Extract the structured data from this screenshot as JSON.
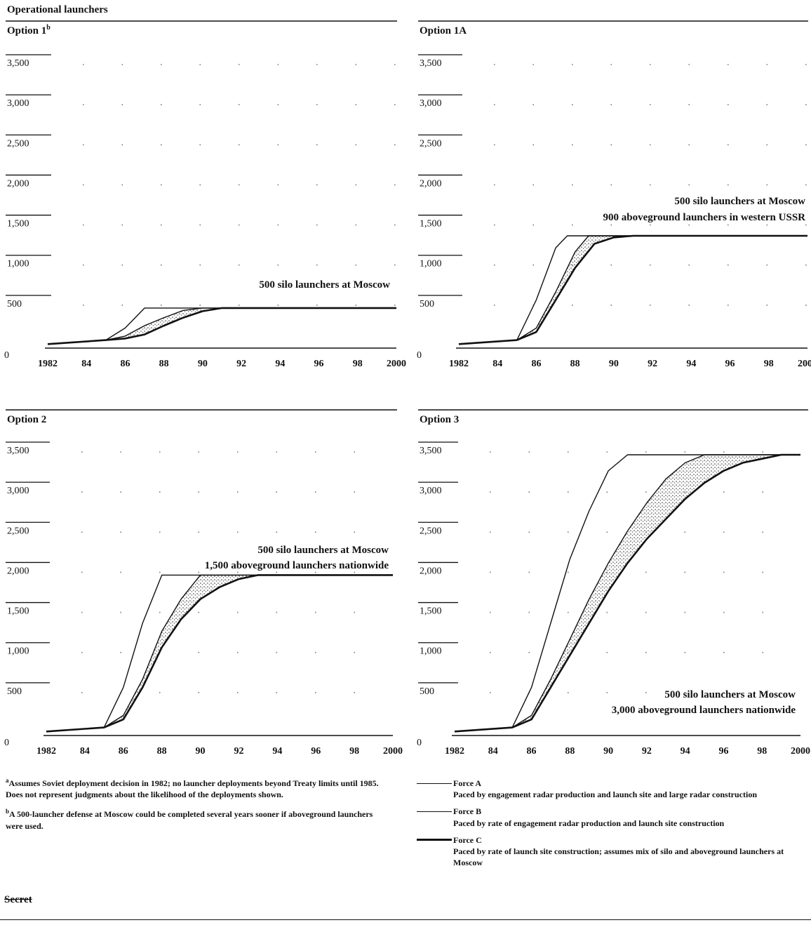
{
  "page_heading": "Operational launchers",
  "classification": "Secret",
  "footnotes": [
    {
      "mark": "a",
      "text": "Assumes Soviet deployment decision in 1982; no launcher deployments beyond Treaty limits until 1985. Does not represent judgments about the likelihood of the deployments shown."
    },
    {
      "mark": "b",
      "text": "A 500-launcher defense at Moscow could be completed several years sooner if aboveground launchers were used."
    }
  ],
  "legend": [
    {
      "label": "Force A",
      "description": "Paced by engagement radar production and launch site and large radar construction"
    },
    {
      "label": "Force B",
      "description": "Paced by rate of engagement radar production and launch site construction"
    },
    {
      "label": "Force C",
      "description": "Paced by rate of launch site construction; assumes mix of silo and aboveground launchers at Moscow"
    }
  ],
  "chart_data": [
    {
      "type": "area",
      "title": "Option 1",
      "title_mark": "b",
      "x_tick_labels": [
        "1982",
        "84",
        "86",
        "88",
        "90",
        "92",
        "94",
        "96",
        "98",
        "2000"
      ],
      "y_tick_labels": [
        "0",
        "500",
        "1,000",
        "1,500",
        "2,000",
        "2,500",
        "3,000",
        "3,500"
      ],
      "xlim": [
        1982,
        2000
      ],
      "ylim": [
        0,
        3500
      ],
      "grid": "dotted",
      "annotation": [
        "500 silo launchers at Moscow"
      ],
      "series": [
        {
          "name": "Force A",
          "points": [
            [
              1982,
              50
            ],
            [
              1985,
              100
            ],
            [
              1986,
              250
            ],
            [
              1987,
              500
            ],
            [
              1988,
              500
            ],
            [
              2000,
              500
            ]
          ]
        },
        {
          "name": "Force B",
          "points": [
            [
              1982,
              50
            ],
            [
              1985,
              100
            ],
            [
              1986,
              150
            ],
            [
              1987,
              280
            ],
            [
              1988,
              380
            ],
            [
              1989,
              470
            ],
            [
              1990,
              500
            ],
            [
              2000,
              500
            ]
          ]
        },
        {
          "name": "Force C",
          "points": [
            [
              1982,
              50
            ],
            [
              1985,
              100
            ],
            [
              1986,
              120
            ],
            [
              1987,
              170
            ],
            [
              1988,
              280
            ],
            [
              1989,
              380
            ],
            [
              1990,
              460
            ],
            [
              1991,
              500
            ],
            [
              2000,
              500
            ]
          ]
        }
      ]
    },
    {
      "type": "area",
      "title": "Option 1A",
      "x_tick_labels": [
        "1982",
        "84",
        "86",
        "88",
        "90",
        "92",
        "94",
        "96",
        "98",
        "2000"
      ],
      "y_tick_labels": [
        "0",
        "500",
        "1,000",
        "1,500",
        "2,000",
        "2,500",
        "3,000",
        "3,500"
      ],
      "xlim": [
        1982,
        2000
      ],
      "ylim": [
        0,
        3500
      ],
      "grid": "dotted",
      "annotation": [
        "500 silo launchers at Moscow",
        "900 aboveground launchers in western USSR"
      ],
      "series": [
        {
          "name": "Force A",
          "points": [
            [
              1982,
              50
            ],
            [
              1985,
              100
            ],
            [
              1986,
              600
            ],
            [
              1987,
              1250
            ],
            [
              1987.6,
              1400
            ],
            [
              2000,
              1400
            ]
          ]
        },
        {
          "name": "Force B",
          "points": [
            [
              1982,
              50
            ],
            [
              1985,
              100
            ],
            [
              1986,
              250
            ],
            [
              1987,
              700
            ],
            [
              1988,
              1200
            ],
            [
              1988.7,
              1400
            ],
            [
              2000,
              1400
            ]
          ]
        },
        {
          "name": "Force C",
          "points": [
            [
              1982,
              50
            ],
            [
              1985,
              100
            ],
            [
              1986,
              200
            ],
            [
              1987,
              600
            ],
            [
              1988,
              1000
            ],
            [
              1989,
              1300
            ],
            [
              1990,
              1380
            ],
            [
              1991,
              1400
            ],
            [
              2000,
              1400
            ]
          ]
        }
      ]
    },
    {
      "type": "area",
      "title": "Option 2",
      "x_tick_labels": [
        "1982",
        "84",
        "86",
        "88",
        "90",
        "92",
        "94",
        "96",
        "98",
        "2000"
      ],
      "y_tick_labels": [
        "0",
        "500",
        "1,000",
        "1,500",
        "2,000",
        "2,500",
        "3,000",
        "3,500"
      ],
      "xlim": [
        1982,
        2000
      ],
      "ylim": [
        0,
        3500
      ],
      "grid": "dotted",
      "annotation": [
        "500 silo launchers at Moscow",
        "1,500 aboveground launchers nationwide"
      ],
      "series": [
        {
          "name": "Force A",
          "points": [
            [
              1982,
              50
            ],
            [
              1985,
              100
            ],
            [
              1986,
              600
            ],
            [
              1987,
              1400
            ],
            [
              1988,
              2000
            ],
            [
              2000,
              2000
            ]
          ]
        },
        {
          "name": "Force B",
          "points": [
            [
              1982,
              50
            ],
            [
              1985,
              100
            ],
            [
              1986,
              250
            ],
            [
              1987,
              700
            ],
            [
              1988,
              1300
            ],
            [
              1989,
              1700
            ],
            [
              1990,
              2000
            ],
            [
              2000,
              2000
            ]
          ]
        },
        {
          "name": "Force C",
          "points": [
            [
              1982,
              50
            ],
            [
              1985,
              100
            ],
            [
              1986,
              200
            ],
            [
              1987,
              600
            ],
            [
              1988,
              1100
            ],
            [
              1989,
              1450
            ],
            [
              1990,
              1700
            ],
            [
              1991,
              1850
            ],
            [
              1992,
              1950
            ],
            [
              1993,
              2000
            ],
            [
              2000,
              2000
            ]
          ]
        }
      ]
    },
    {
      "type": "area",
      "title": "Option 3",
      "x_tick_labels": [
        "1982",
        "84",
        "86",
        "88",
        "90",
        "92",
        "94",
        "96",
        "98",
        "2000"
      ],
      "y_tick_labels": [
        "0",
        "500",
        "1,000",
        "1,500",
        "2,000",
        "2,500",
        "3,000",
        "3,500"
      ],
      "xlim": [
        1982,
        2000
      ],
      "ylim": [
        0,
        3500
      ],
      "grid": "dotted",
      "annotation": [
        "500 silo launchers at Moscow",
        "3,000 aboveground launchers nationwide"
      ],
      "series": [
        {
          "name": "Force A",
          "points": [
            [
              1982,
              50
            ],
            [
              1985,
              100
            ],
            [
              1986,
              600
            ],
            [
              1987,
              1400
            ],
            [
              1988,
              2200
            ],
            [
              1989,
              2800
            ],
            [
              1990,
              3300
            ],
            [
              1991,
              3500
            ],
            [
              2000,
              3500
            ]
          ]
        },
        {
          "name": "Force B",
          "points": [
            [
              1982,
              50
            ],
            [
              1985,
              100
            ],
            [
              1986,
              250
            ],
            [
              1987,
              700
            ],
            [
              1988,
              1200
            ],
            [
              1989,
              1700
            ],
            [
              1990,
              2150
            ],
            [
              1991,
              2550
            ],
            [
              1992,
              2900
            ],
            [
              1993,
              3200
            ],
            [
              1994,
              3400
            ],
            [
              1995,
              3500
            ],
            [
              2000,
              3500
            ]
          ]
        },
        {
          "name": "Force C",
          "points": [
            [
              1982,
              50
            ],
            [
              1985,
              100
            ],
            [
              1986,
              200
            ],
            [
              1987,
              600
            ],
            [
              1988,
              1000
            ],
            [
              1989,
              1400
            ],
            [
              1990,
              1800
            ],
            [
              1991,
              2150
            ],
            [
              1992,
              2450
            ],
            [
              1993,
              2700
            ],
            [
              1994,
              2950
            ],
            [
              1995,
              3150
            ],
            [
              1996,
              3300
            ],
            [
              1997,
              3400
            ],
            [
              1998,
              3450
            ],
            [
              1999,
              3500
            ],
            [
              2000,
              3500
            ]
          ]
        }
      ]
    }
  ]
}
